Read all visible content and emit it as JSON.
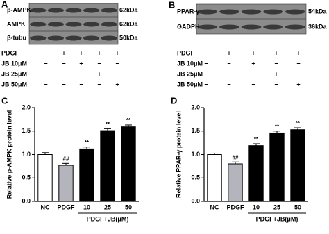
{
  "blots": [
    {
      "letter": "A",
      "rows": [
        {
          "label": "p-AMPK",
          "size": "62kDa"
        },
        {
          "label": "AMPK",
          "size": "62kDa"
        },
        {
          "label": "β-tubu",
          "size": "50kDa"
        }
      ],
      "treatments": [
        {
          "label": "PDGF",
          "signs": [
            "−",
            "+",
            "+",
            "+",
            "+"
          ]
        },
        {
          "label": "JB 10μM",
          "signs": [
            "−",
            "−",
            "+",
            "−",
            "−"
          ]
        },
        {
          "label": "JB 25μM",
          "signs": [
            "−",
            "−",
            "−",
            "+",
            "−"
          ]
        },
        {
          "label": "JB 50μM",
          "signs": [
            "−",
            "−",
            "−",
            "−",
            "+"
          ]
        }
      ]
    },
    {
      "letter": "B",
      "rows": [
        {
          "label": "PPAR-γ",
          "size": "54kDa"
        },
        {
          "label": "GADPH",
          "size": "36kDa"
        }
      ],
      "treatments": [
        {
          "label": "PDGF",
          "signs": [
            "−",
            "+",
            "+",
            "+",
            "+"
          ]
        },
        {
          "label": "JB 10μM",
          "signs": [
            "−",
            "−",
            "+",
            "−",
            "−"
          ]
        },
        {
          "label": "JB 25μM",
          "signs": [
            "−",
            "−",
            "−",
            "+",
            "−"
          ]
        },
        {
          "label": "JB 50μM",
          "signs": [
            "−",
            "−",
            "−",
            "−",
            "+"
          ]
        }
      ]
    }
  ],
  "chart_data": [
    {
      "type": "bar",
      "letter": "C",
      "y_label": "Relative p-AMPK protein level",
      "categories": [
        "NC",
        "PDGF",
        "10",
        "25",
        "50"
      ],
      "group_label": "PDGF+JB(μM)",
      "values": [
        1.0,
        0.77,
        1.12,
        1.51,
        1.59
      ],
      "errors": [
        0.04,
        0.04,
        0.04,
        0.04,
        0.04
      ],
      "annotations": [
        null,
        "##",
        "**",
        "**",
        "**"
      ],
      "colors": [
        "#ffffff",
        "#b4b4bc",
        "#000000",
        "#000000",
        "#000000"
      ],
      "ylim": [
        0,
        2
      ],
      "yticks": [
        {
          "value": 0,
          "label": "0.0"
        },
        0.5,
        {
          "value": 1,
          "label": "1.0"
        },
        1.5,
        {
          "value": 2,
          "label": "2.0"
        }
      ]
    },
    {
      "type": "bar",
      "letter": "D",
      "y_label": "Relative PPAR-γ protein level",
      "categories": [
        "NC",
        "PDGF",
        "10",
        "25",
        "50"
      ],
      "group_label": "PDGF+JB(μM)",
      "values": [
        1.0,
        0.8,
        1.19,
        1.46,
        1.53
      ],
      "errors": [
        0.03,
        0.04,
        0.04,
        0.04,
        0.04
      ],
      "annotations": [
        null,
        "##",
        "**",
        "**",
        "**"
      ],
      "colors": [
        "#ffffff",
        "#b4b4bc",
        "#000000",
        "#000000",
        "#000000"
      ],
      "ylim": [
        0,
        2
      ],
      "yticks": [
        {
          "value": 0,
          "label": "0.0"
        },
        0.5,
        {
          "value": 1,
          "label": "1.0"
        },
        1.5,
        {
          "value": 2,
          "label": "2.0"
        }
      ]
    }
  ]
}
